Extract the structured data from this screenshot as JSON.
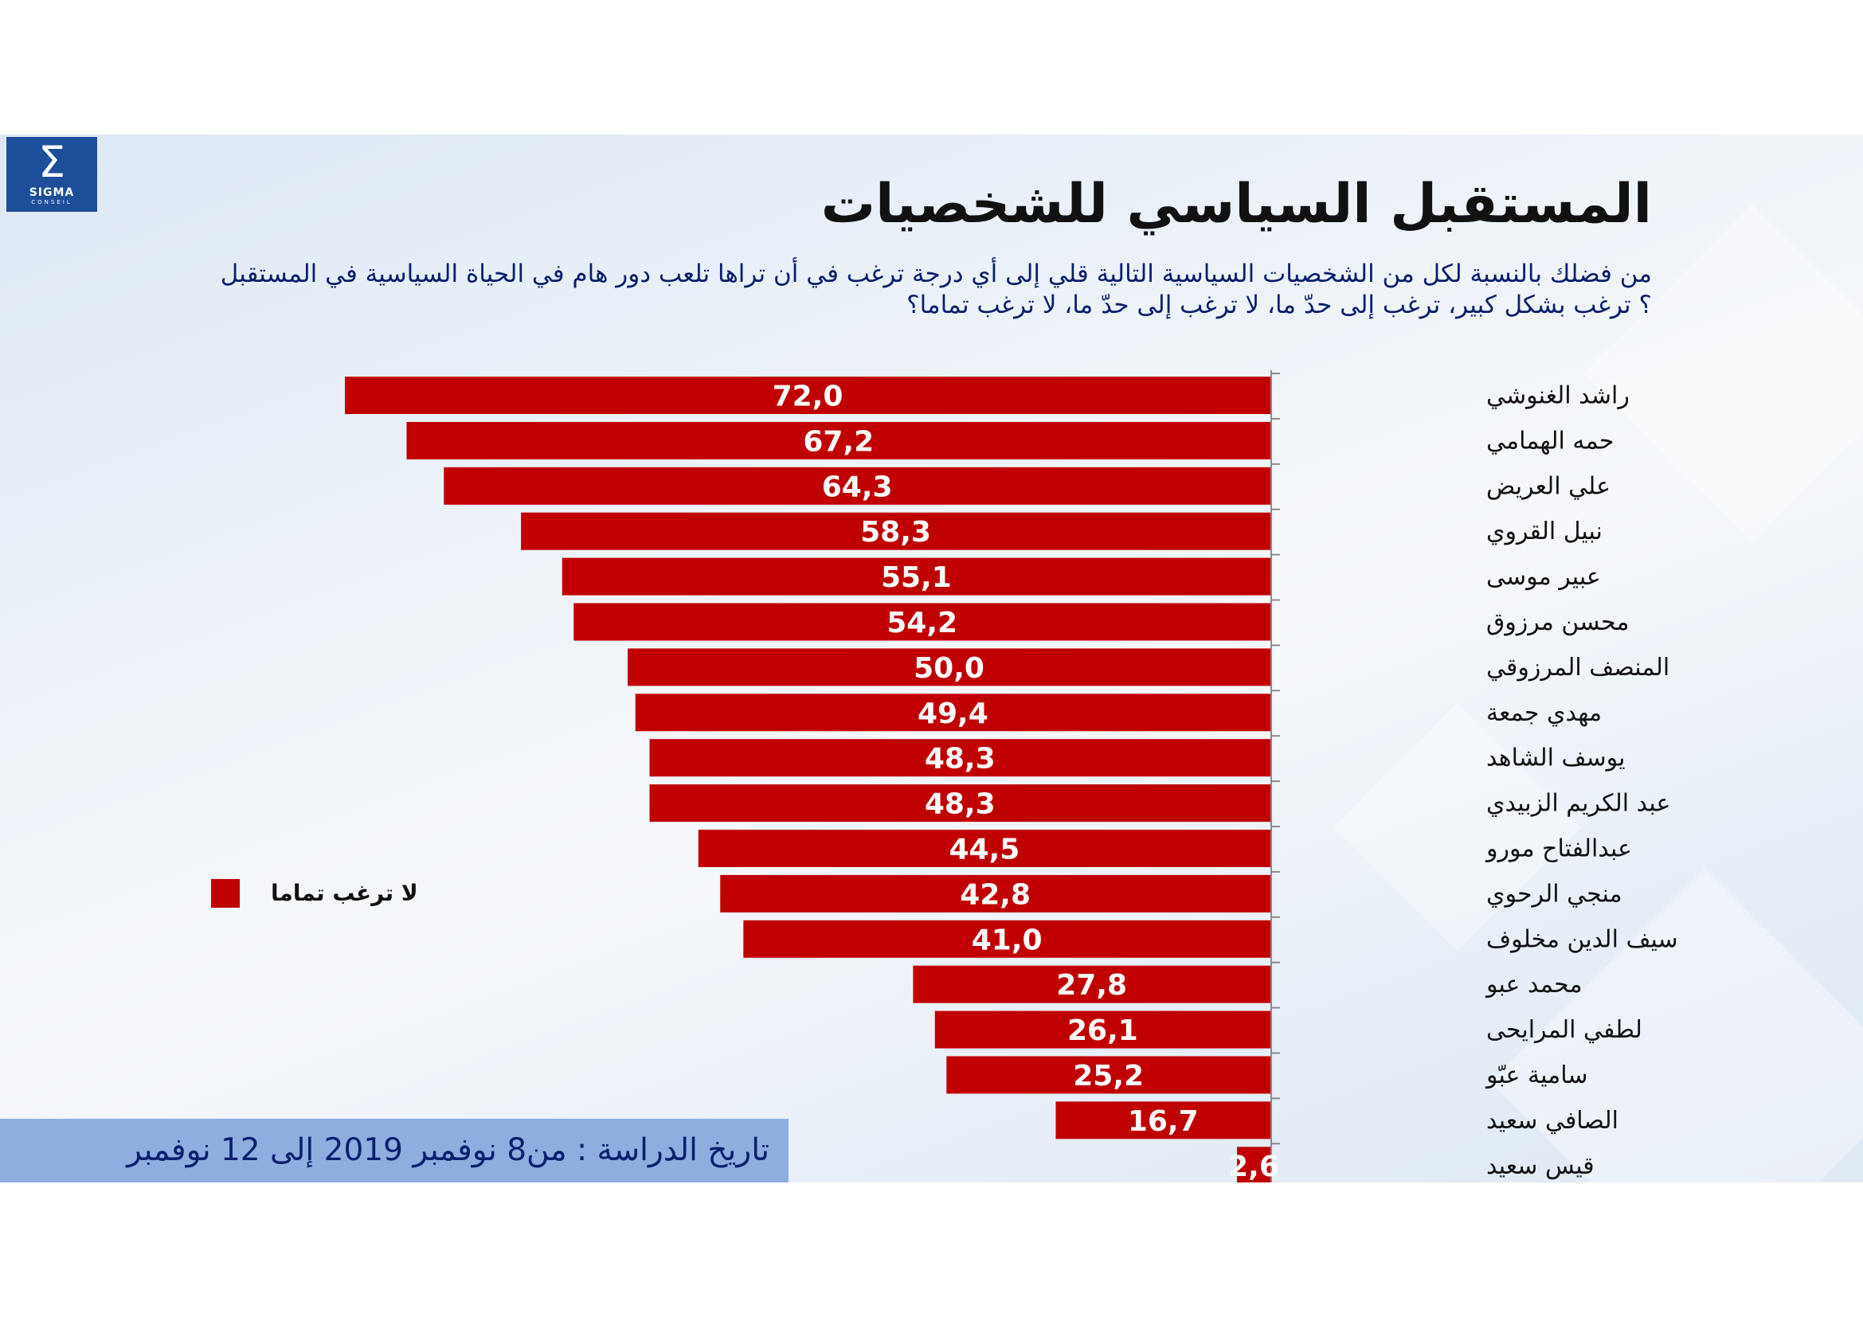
{
  "logo": {
    "symbol": "Σ",
    "name": "SIGMA",
    "sub": "CONSEIL"
  },
  "title": "المستقبل السياسي للشخصيات",
  "question_line1": "من فضلك بالنسبة لكل من الشخصيات السياسية التالية قلي إلى أي درجة ترغب في أن تراها تلعب دور هام في الحياة السياسية في المستقبل",
  "question_line2": "؟ ترغب بشكل كبير، ترغب إلى حدّ ما، لا ترغب إلى حدّ ما، لا ترغب تماما؟",
  "legend": {
    "label": "لا ترغب تماما",
    "color": "#c00000"
  },
  "footer": {
    "text": "تاريخ الدراسة : من8  نوفمبر 2019 إلى 12 نوفمبر"
  },
  "colors": {
    "bar": "#c00000",
    "axis": "#8a8a8a",
    "footer_bg": "#8eaee0",
    "logo_bg": "#1d4e9a"
  },
  "chart_data": {
    "type": "bar",
    "orientation": "horizontal",
    "categories": [
      "راشد الغنوشي",
      "حمه الهمامي",
      "علي العريض",
      "نبيل القروي",
      "عبير موسى",
      "محسن مرزوق",
      "المنصف المرزوقي",
      "مهدي جمعة",
      "يوسف الشاهد",
      "عبد الكريم الزبيدي",
      "عبدالفتاح مورو",
      "منجي الرحوي",
      "سيف الدين مخلوف",
      "محمد عبو",
      "لطفي المرايحى",
      "سامية عبّو",
      "الصافي سعيد",
      "قيس سعيد"
    ],
    "series": [
      {
        "name": "لا ترغب تماما",
        "values": [
          72.0,
          67.2,
          64.3,
          58.3,
          55.1,
          54.2,
          50.0,
          49.4,
          48.3,
          48.3,
          44.5,
          42.8,
          41.0,
          27.8,
          26.1,
          25.2,
          16.7,
          2.6
        ],
        "labels": [
          "72,0",
          "67,2",
          "64,3",
          "58,3",
          "55,1",
          "54,2",
          "50,0",
          "49,4",
          "48,3",
          "48,3",
          "44,5",
          "42,8",
          "41,0",
          "27,8",
          "26,1",
          "25,2",
          "16,7",
          "2,6"
        ]
      }
    ],
    "xlim": [
      0,
      72
    ],
    "legend_position": "left",
    "bars_extend": "right-to-left"
  }
}
